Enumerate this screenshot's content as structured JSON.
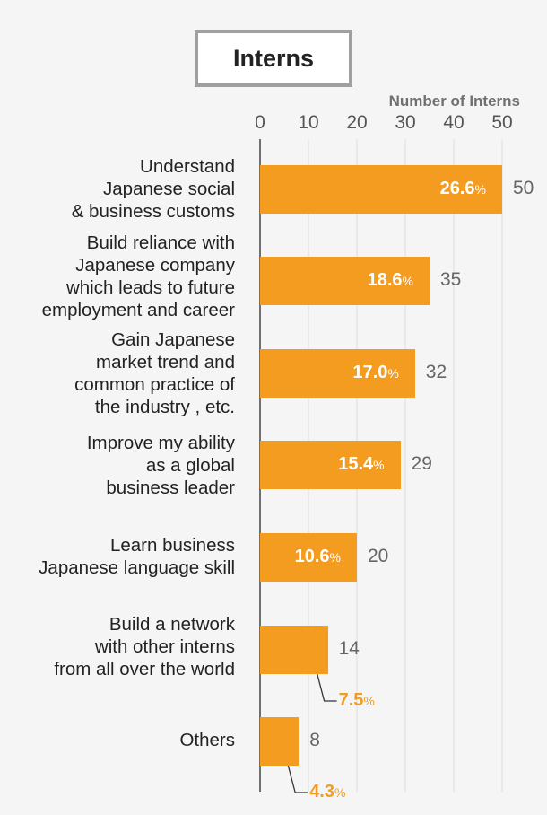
{
  "chart_data": {
    "type": "bar",
    "orientation": "horizontal",
    "title": "Interns",
    "xlabel": "Number of Interns",
    "xticks": [
      "0",
      "10",
      "20",
      "30",
      "40",
      "50"
    ],
    "xlim": [
      0,
      50
    ],
    "grid": true,
    "categories": [
      [
        "Understand",
        "Japanese social",
        "& business customs"
      ],
      [
        "Build reliance with",
        "Japanese company",
        "which leads to future",
        "employment and career"
      ],
      [
        "Gain Japanese",
        "market trend and",
        "common practice of",
        "the industry , etc."
      ],
      [
        "Improve my ability",
        "as a global",
        "business leader"
      ],
      [
        "Learn business",
        "Japanese language skill"
      ],
      [
        "Build a network",
        "with other interns",
        "from all over the world"
      ],
      [
        "Others"
      ]
    ],
    "values": [
      50,
      35,
      32,
      29,
      20,
      14,
      8
    ],
    "value_labels": [
      "50",
      "35",
      "32",
      "29",
      "20",
      "14",
      "8"
    ],
    "percent_numbers": [
      "26.6",
      "18.6",
      "17.0",
      "15.4",
      "10.6",
      "7.5",
      "4.3"
    ],
    "percent_sign": "%",
    "bar_color": "#f39c1f"
  }
}
